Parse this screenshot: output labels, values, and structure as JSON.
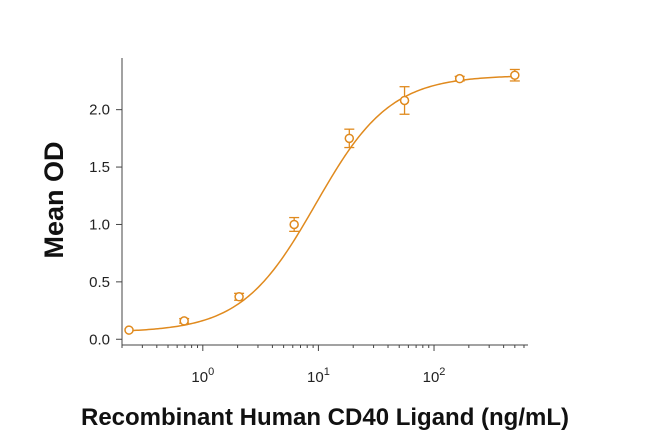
{
  "chart_data": {
    "type": "scatter",
    "xlabel": "Recombinant Human CD40 Ligand (ng/mL)",
    "ylabel": "Mean OD",
    "x_scale": "log",
    "xlim": [
      0.2,
      650
    ],
    "ylim": [
      -0.05,
      2.45
    ],
    "y_ticks": [
      0.0,
      0.5,
      1.0,
      1.5,
      2.0
    ],
    "y_tick_labels": [
      "0.0",
      "0.5",
      "1.0",
      "1.5",
      "2.0"
    ],
    "x_ticks": [
      1,
      10,
      100
    ],
    "x_tick_labels": [
      {
        "base": "10",
        "exp": "0"
      },
      {
        "base": "10",
        "exp": "1"
      },
      {
        "base": "10",
        "exp": "2"
      }
    ],
    "series": [
      {
        "color": "#E08A1E",
        "points": [
          {
            "x": 0.23,
            "y": 0.08,
            "err": 0.01
          },
          {
            "x": 0.69,
            "y": 0.16,
            "err": 0.02
          },
          {
            "x": 2.06,
            "y": 0.37,
            "err": 0.03
          },
          {
            "x": 6.17,
            "y": 1.0,
            "err": 0.06
          },
          {
            "x": 18.5,
            "y": 1.75,
            "err": 0.08
          },
          {
            "x": 55.6,
            "y": 2.08,
            "err": 0.12
          },
          {
            "x": 166.7,
            "y": 2.27,
            "err": 0.02
          },
          {
            "x": 500,
            "y": 2.3,
            "err": 0.05
          }
        ],
        "fit": {
          "bottom": 0.06,
          "top": 2.3,
          "ec50": 9.5,
          "hill": 1.35
        }
      }
    ],
    "grid": false,
    "legend": "none"
  }
}
